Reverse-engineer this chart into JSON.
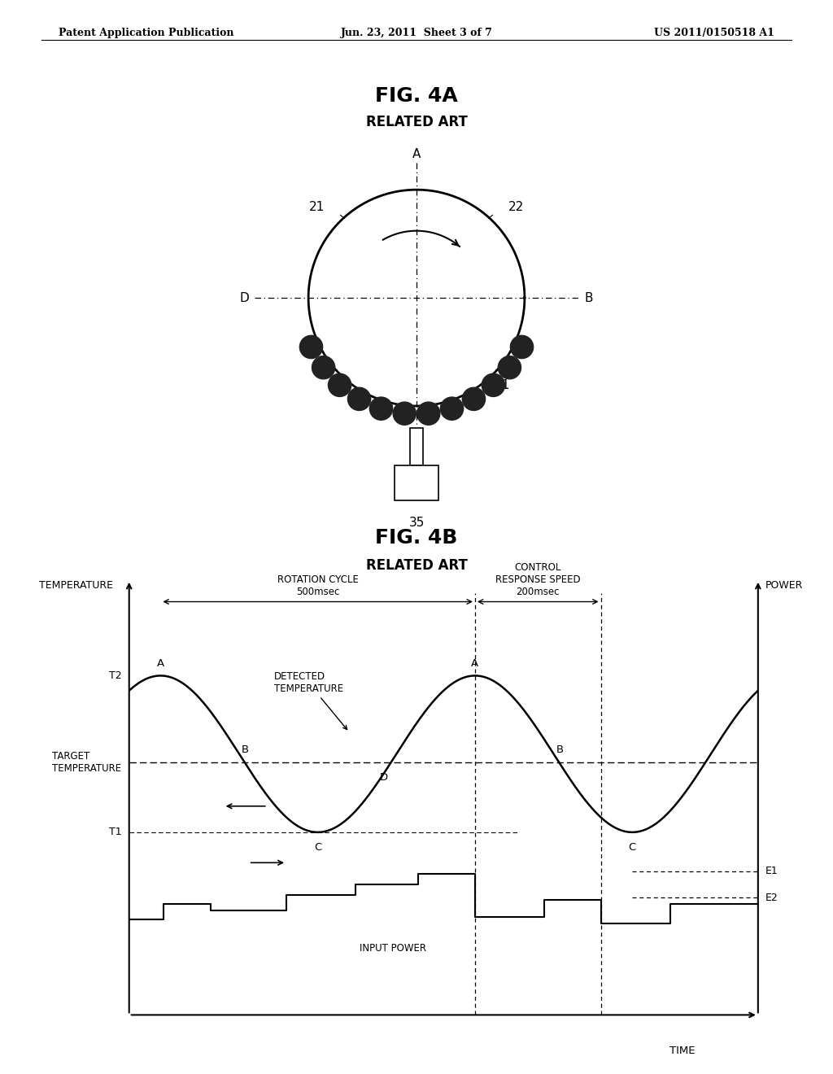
{
  "bg_color": "#ffffff",
  "header_left": "Patent Application Publication",
  "header_mid": "Jun. 23, 2011  Sheet 3 of 7",
  "header_right": "US 2011/0150518 A1",
  "fig4a_title": "FIG. 4A",
  "fig4a_subtitle": "RELATED ART",
  "fig4b_title": "FIG. 4B",
  "fig4b_subtitle": "RELATED ART",
  "temp_xlabel": "TIME",
  "temp_ylabel_left": "TEMPERATURE",
  "temp_ylabel_right": "POWER",
  "rotation_cycle_label": "ROTATION CYCLE\n500msec",
  "control_response_label": "CONTROL\nRESPONSE SPEED\n200msec",
  "target_temp_label": "TARGET\nTEMPERATURE",
  "detected_temp_label": "DETECTED\nTEMPERATURE",
  "input_power_label": "INPUT POWER",
  "t1_label": "T1",
  "t2_label": "T2",
  "e1_label": "E1",
  "e2_label": "E2"
}
